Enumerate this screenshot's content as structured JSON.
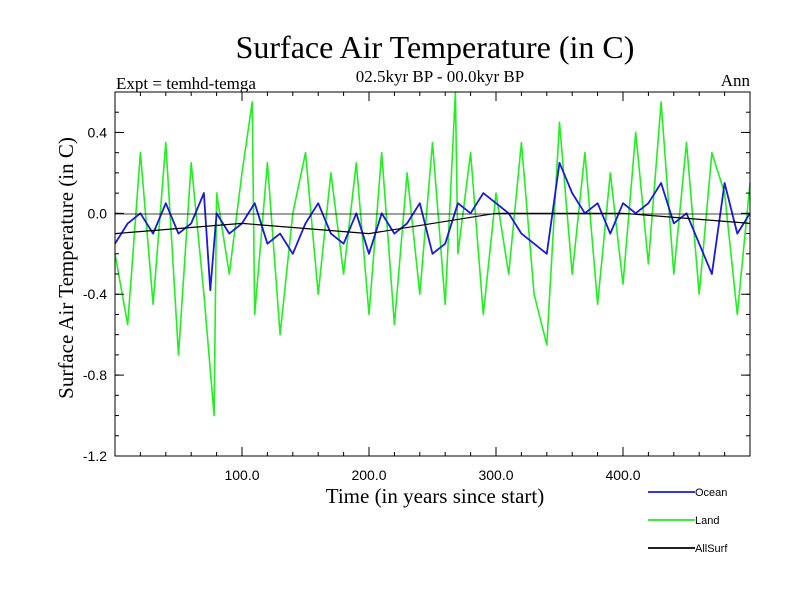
{
  "chart_data": {
    "type": "line",
    "title": "Surface Air Temperature (in C)",
    "subtitle": "02.5kyr BP - 00.0kyr BP",
    "expt_label": "Expt = temhd-temga",
    "season_label": "Ann",
    "xlabel": "Time (in years since start)",
    "ylabel": "Surface Air Temperature (in C)",
    "xlim": [
      0,
      500
    ],
    "ylim": [
      -1.2,
      0.6
    ],
    "x_ticks": [
      100,
      200,
      300,
      400
    ],
    "x_tick_labels": [
      "100.0",
      "200.0",
      "300.0",
      "400.0"
    ],
    "y_ticks": [
      -1.2,
      -0.8,
      -0.4,
      0.0,
      0.4
    ],
    "y_tick_labels": [
      "-1.2",
      "-0.8",
      "-0.4",
      "0.0",
      "0.4"
    ],
    "series": [
      {
        "name": "Ocean",
        "color": "#1a1adc",
        "x": [
          0,
          10,
          20,
          30,
          40,
          50,
          60,
          70,
          75,
          80,
          90,
          100,
          110,
          120,
          130,
          140,
          150,
          160,
          170,
          180,
          190,
          200,
          210,
          220,
          230,
          240,
          250,
          260,
          270,
          280,
          290,
          300,
          310,
          320,
          330,
          340,
          350,
          360,
          370,
          380,
          390,
          400,
          410,
          420,
          430,
          440,
          450,
          460,
          470,
          480,
          490,
          500
        ],
        "values": [
          -0.15,
          -0.05,
          0.0,
          -0.1,
          0.05,
          -0.1,
          -0.05,
          0.1,
          -0.38,
          0.0,
          -0.1,
          -0.05,
          0.05,
          -0.15,
          -0.1,
          -0.2,
          -0.05,
          0.05,
          -0.1,
          -0.15,
          0.0,
          -0.2,
          0.0,
          -0.1,
          -0.05,
          0.05,
          -0.2,
          -0.15,
          0.05,
          0.0,
          0.1,
          0.05,
          0.0,
          -0.1,
          -0.15,
          -0.2,
          0.25,
          0.1,
          0.0,
          0.05,
          -0.1,
          0.05,
          0.0,
          0.05,
          0.15,
          -0.05,
          0.0,
          -0.15,
          -0.3,
          0.15,
          -0.1,
          0.0
        ]
      },
      {
        "name": "Land",
        "color": "#22ee22",
        "x": [
          0,
          10,
          20,
          30,
          40,
          50,
          60,
          70,
          78,
          80,
          90,
          100,
          108,
          110,
          120,
          130,
          140,
          150,
          160,
          170,
          180,
          190,
          200,
          210,
          220,
          230,
          240,
          250,
          260,
          268,
          270,
          280,
          290,
          300,
          310,
          320,
          330,
          340,
          350,
          360,
          370,
          380,
          390,
          400,
          410,
          420,
          430,
          440,
          450,
          460,
          470,
          480,
          490,
          500
        ],
        "values": [
          -0.2,
          -0.55,
          0.3,
          -0.45,
          0.35,
          -0.7,
          0.25,
          -0.4,
          -1.0,
          0.1,
          -0.3,
          0.2,
          0.55,
          -0.5,
          0.25,
          -0.6,
          0.0,
          0.3,
          -0.4,
          0.2,
          -0.3,
          0.25,
          -0.5,
          0.3,
          -0.55,
          0.2,
          -0.4,
          0.35,
          -0.45,
          0.6,
          -0.2,
          0.3,
          -0.5,
          0.1,
          -0.3,
          0.35,
          -0.4,
          -0.65,
          0.45,
          -0.3,
          0.3,
          -0.45,
          0.2,
          -0.35,
          0.4,
          -0.25,
          0.55,
          -0.3,
          0.35,
          -0.4,
          0.3,
          0.1,
          -0.5,
          0.15
        ]
      },
      {
        "name": "AllSurf",
        "color": "#000000",
        "x": [
          0,
          100,
          200,
          300,
          400,
          500
        ],
        "values": [
          -0.1,
          -0.05,
          -0.1,
          0.0,
          0.0,
          -0.05
        ]
      }
    ],
    "legend_position": "bottom-right"
  }
}
